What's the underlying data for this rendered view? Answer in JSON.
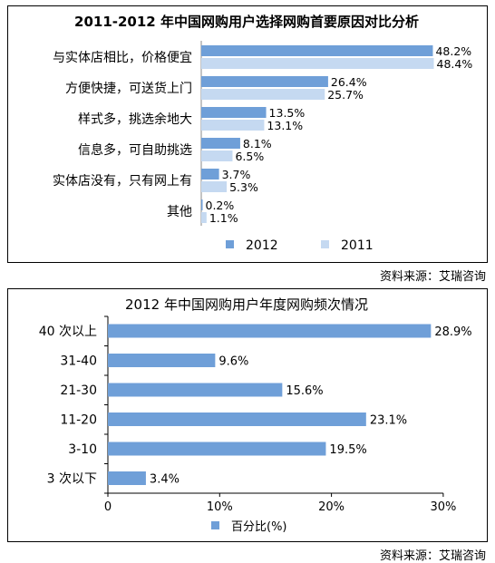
{
  "chart_data": [
    {
      "type": "bar",
      "orientation": "horizontal",
      "title": "2011-2012 年中国网购用户选择网购首要原因对比分析",
      "categories": [
        "与实体店相比，价格便宜",
        "方便快捷，可送货上门",
        "样式多，挑选余地大",
        "信息多，可自助挑选",
        "实体店没有，只有网上有",
        "其他"
      ],
      "series": [
        {
          "name": "2012",
          "values": [
            48.2,
            26.4,
            13.5,
            8.1,
            3.7,
            0.2
          ],
          "labels": [
            "48.2%",
            "26.4%",
            "13.5%",
            "8.1%",
            "3.7%",
            "0.2%"
          ],
          "color": "#6f9fd8"
        },
        {
          "name": "2011",
          "values": [
            48.4,
            25.7,
            13.1,
            6.5,
            5.3,
            1.1
          ],
          "labels": [
            "48.4%",
            "25.7%",
            "13.1%",
            "6.5%",
            "5.3%",
            "1.1%"
          ],
          "color": "#c5d9f1"
        }
      ],
      "xlim": [
        0,
        50
      ],
      "legend_position": "bottom",
      "source": "资料来源：艾瑞咨询"
    },
    {
      "type": "bar",
      "orientation": "horizontal",
      "title": "2012 年中国网购用户年度网购频次情况",
      "categories": [
        "40 次以上",
        "31-40",
        "21-30",
        "11-20",
        "3-10",
        "3 次以下"
      ],
      "series": [
        {
          "name": "百分比(%)",
          "values": [
            28.9,
            9.6,
            15.6,
            23.1,
            19.5,
            3.4
          ],
          "labels": [
            "28.9%",
            "9.6%",
            "15.6%",
            "23.1%",
            "19.5%",
            "3.4%"
          ],
          "color": "#6f9fd8"
        }
      ],
      "xlim": [
        0,
        30
      ],
      "xticks": [
        "0",
        "10%",
        "20%",
        "30%"
      ],
      "legend_position": "bottom",
      "source": "资料来源：艾瑞咨询"
    }
  ]
}
